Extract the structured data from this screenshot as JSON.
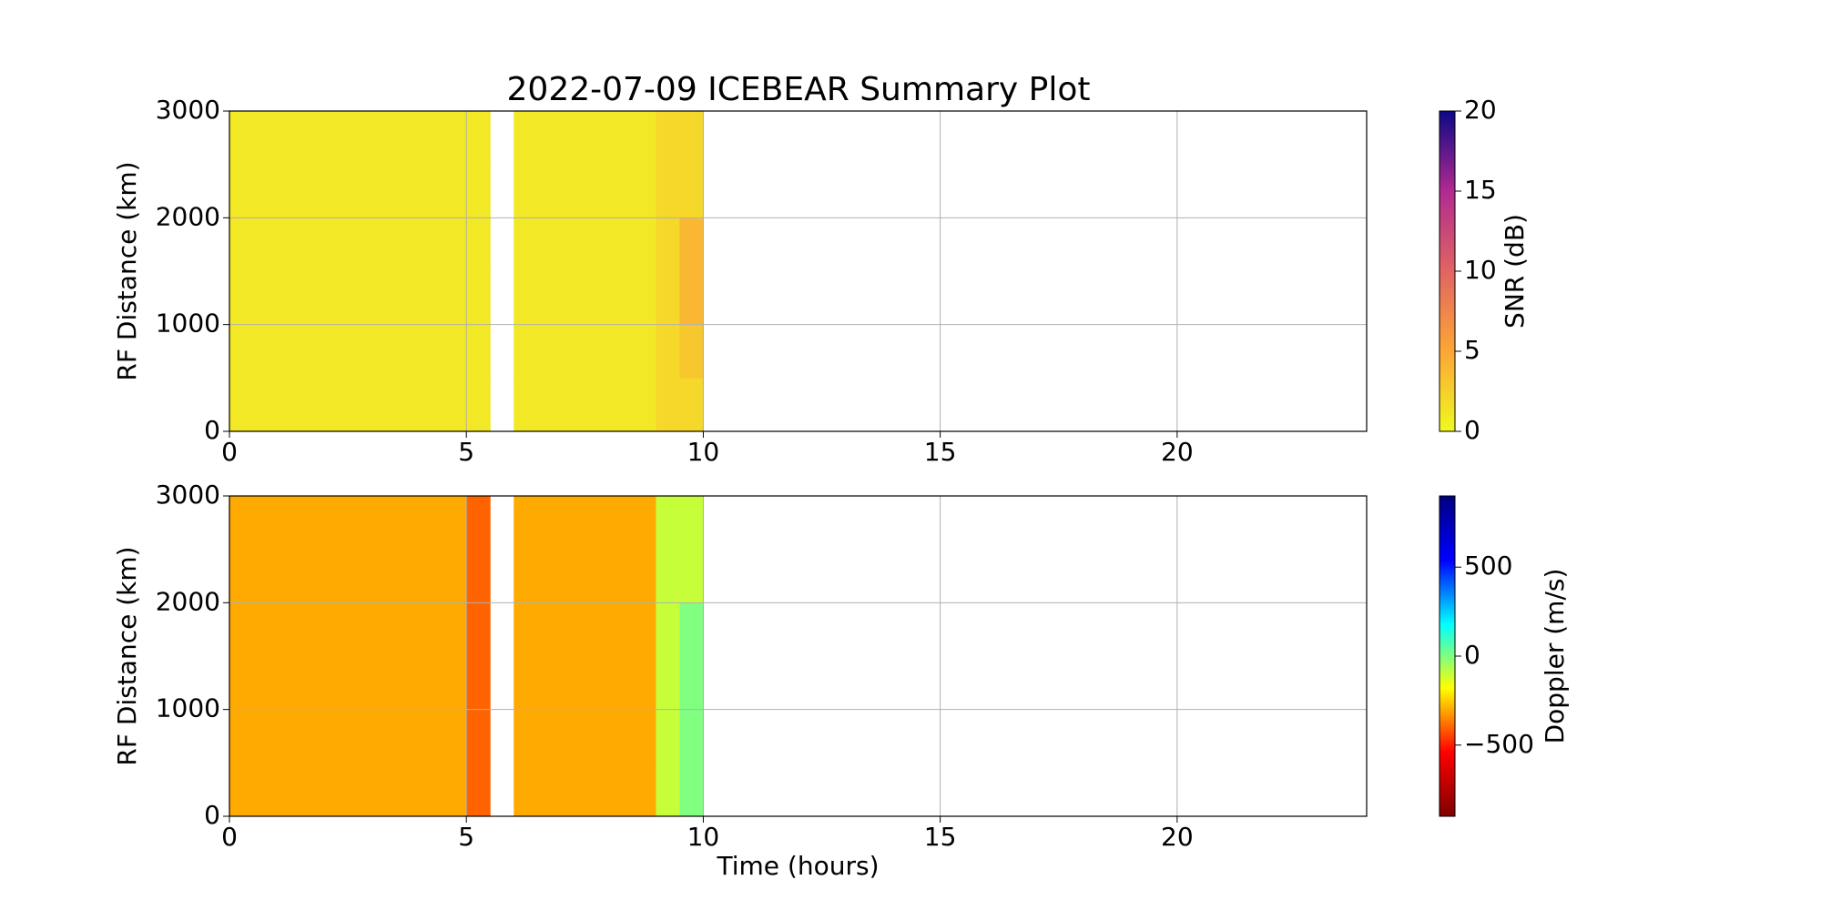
{
  "chart_data": [
    {
      "type": "heatmap",
      "title": "2022-07-09 ICEBEAR Summary Plot",
      "ylabel": "RF Distance (km)",
      "x_bins": [
        0,
        0.5,
        1,
        1.5,
        2,
        2.5,
        3,
        3.5,
        4,
        4.5,
        5,
        5.5,
        6,
        6.5,
        7,
        7.5,
        8,
        8.5,
        9,
        9.5,
        10
      ],
      "y_bins": [
        0,
        500,
        1000,
        1500,
        2000,
        2500,
        3000
      ],
      "values": [
        [
          1,
          1,
          1,
          1,
          1,
          1,
          1,
          1,
          1,
          1,
          1,
          null,
          1,
          1,
          1,
          1,
          1,
          1,
          2,
          2
        ],
        [
          1,
          1,
          1,
          1,
          1,
          1,
          1,
          1,
          1,
          1,
          1,
          null,
          1,
          1,
          1,
          1,
          1,
          1,
          2,
          3
        ],
        [
          1,
          1,
          1,
          1,
          1,
          1,
          1,
          1,
          1,
          1,
          1,
          null,
          1,
          1,
          1,
          1,
          1,
          1,
          2,
          4
        ],
        [
          1,
          1,
          1,
          1,
          1,
          1,
          1,
          1,
          1,
          1,
          1,
          null,
          1,
          1,
          1,
          1,
          1,
          1,
          2,
          4
        ],
        [
          1,
          1,
          1,
          1,
          1,
          1,
          1,
          1,
          1,
          1,
          1,
          null,
          1,
          1,
          1,
          1,
          1,
          1,
          2,
          2
        ],
        [
          1,
          1,
          1,
          1,
          1,
          1,
          1,
          1,
          1,
          1,
          1,
          null,
          1,
          1,
          1,
          1,
          1,
          1,
          2,
          2
        ]
      ],
      "xlim": [
        0,
        24
      ],
      "xticks": [
        0,
        5,
        10,
        15,
        20
      ],
      "ylim": [
        0,
        3000
      ],
      "yticks": [
        0,
        1000,
        2000,
        3000
      ],
      "grid": true,
      "colorbar": {
        "label": "SNR (dB)",
        "lim": [
          0,
          20
        ],
        "ticks": [
          0,
          5,
          10,
          15,
          20
        ],
        "colors": [
          "#f0f921",
          "#fca636",
          "#e16462",
          "#b12a90",
          "#0d0887"
        ]
      }
    },
    {
      "type": "heatmap",
      "ylabel": "RF Distance (km)",
      "xlabel": "Time (hours)",
      "x_bins": [
        0,
        0.5,
        1,
        1.5,
        2,
        2.5,
        3,
        3.5,
        4,
        4.5,
        5,
        5.5,
        6,
        6.5,
        7,
        7.5,
        8,
        8.5,
        9,
        9.5,
        10
      ],
      "y_bins": [
        0,
        500,
        1000,
        1500,
        2000,
        2500,
        3000
      ],
      "values": [
        [
          -300,
          -300,
          -300,
          -300,
          -300,
          -300,
          -300,
          -300,
          -300,
          -300,
          -400,
          null,
          -300,
          -300,
          -300,
          -300,
          -300,
          -300,
          -100,
          0
        ],
        [
          -300,
          -300,
          -300,
          -300,
          -300,
          -300,
          -300,
          -300,
          -300,
          -300,
          -400,
          null,
          -300,
          -300,
          -300,
          -300,
          -300,
          -300,
          -100,
          0
        ],
        [
          -300,
          -300,
          -300,
          -300,
          -300,
          -300,
          -300,
          -300,
          -300,
          -300,
          -400,
          null,
          -300,
          -300,
          -300,
          -300,
          -300,
          -300,
          -100,
          0
        ],
        [
          -300,
          -300,
          -300,
          -300,
          -300,
          -300,
          -300,
          -300,
          -300,
          -300,
          -400,
          null,
          -300,
          -300,
          -300,
          -300,
          -300,
          -300,
          -100,
          0
        ],
        [
          -300,
          -300,
          -300,
          -300,
          -300,
          -300,
          -300,
          -300,
          -300,
          -300,
          -400,
          null,
          -300,
          -300,
          -300,
          -300,
          -300,
          -300,
          -100,
          -100
        ],
        [
          -300,
          -300,
          -300,
          -300,
          -300,
          -300,
          -300,
          -300,
          -300,
          -300,
          -400,
          null,
          -300,
          -300,
          -300,
          -300,
          -300,
          -300,
          -100,
          -100
        ]
      ],
      "xlim": [
        0,
        24
      ],
      "xticks": [
        0,
        5,
        10,
        15,
        20
      ],
      "ylim": [
        0,
        3000
      ],
      "yticks": [
        0,
        1000,
        2000,
        3000
      ],
      "grid": true,
      "colorbar": {
        "label": "Doppler (m/s)",
        "lim": [
          -900,
          900
        ],
        "ticks": [
          {
            "value": -500,
            "label": "−500"
          },
          0,
          500
        ],
        "colors": [
          "#7f0000",
          "#ff0000",
          "#ffff00",
          "#00ffff",
          "#0000ff",
          "#00007f"
        ]
      }
    }
  ]
}
